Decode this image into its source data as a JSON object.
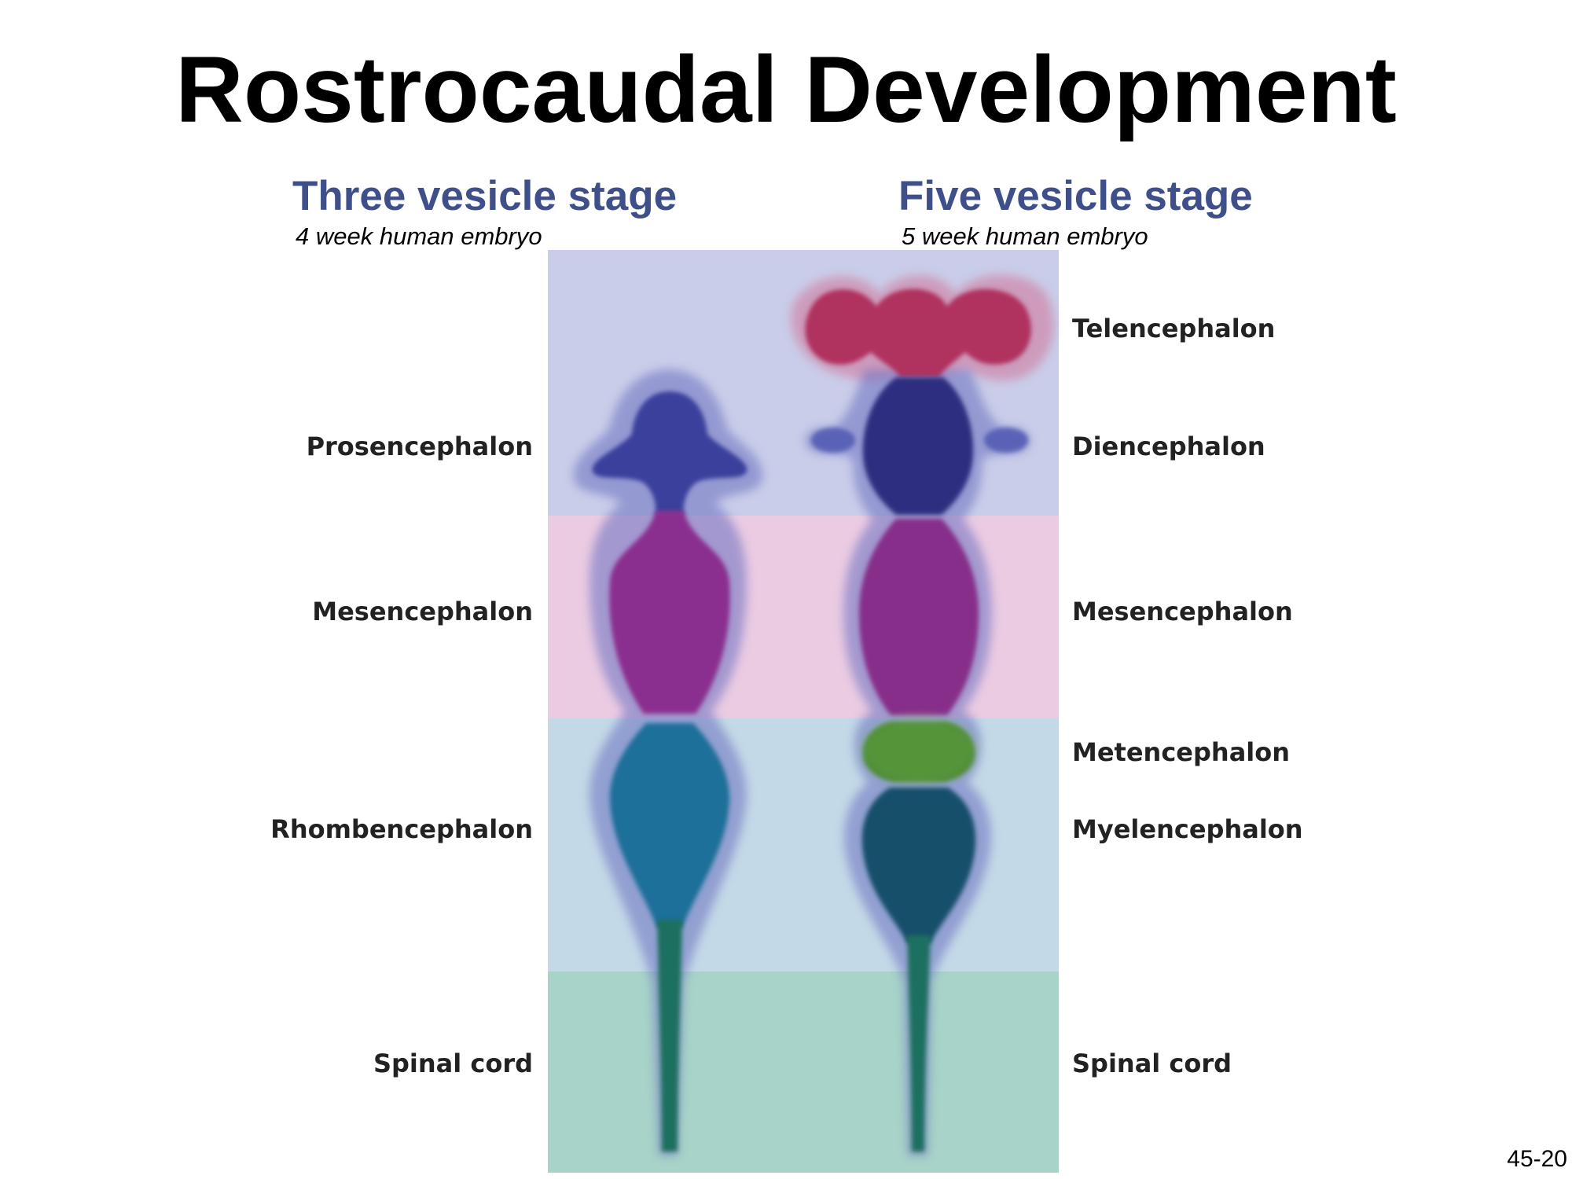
{
  "slide": {
    "title": "Rostrocaudal Development",
    "number": "45-20"
  },
  "three_vesicle": {
    "heading": "Three vesicle stage",
    "subheading": "4 week human embryo",
    "labels": [
      "Prosencephalon",
      "Mesencephalon",
      "Rhombencephalon",
      "Spinal cord"
    ]
  },
  "five_vesicle": {
    "heading": "Five vesicle stage",
    "subheading": "5 week human embryo",
    "labels": [
      "Telencephalon",
      "Diencephalon",
      "Mesencephalon",
      "Metencephalon",
      "Myelencephalon",
      "Spinal cord"
    ]
  },
  "colors": {
    "band_forebrain": "#c9cde9",
    "band_midbrain": "#ebcbe2",
    "band_hindbrain": "#c3d9e7",
    "band_spinal": "#a7d3c8",
    "forebrain": "#3b3f9c",
    "telencephalon": "#b0325f",
    "midbrain": "#8a2f8f",
    "metencephalon": "#4c8a2f",
    "hindbrain": "#1f6f8f",
    "spinal_cord": "#1a6f5e",
    "heading_blue": "#3e4f8a"
  }
}
